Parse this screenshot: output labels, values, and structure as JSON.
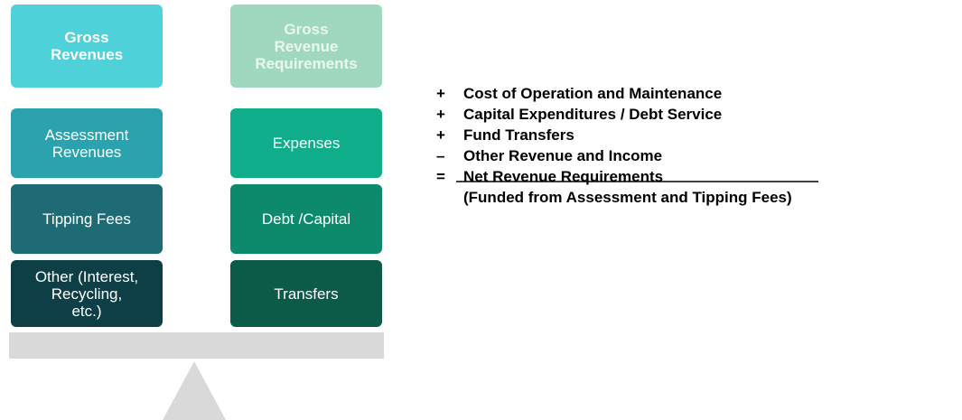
{
  "left_column": [
    {
      "lines": [
        "Gross",
        "Revenues"
      ]
    },
    {
      "lines": [
        "Assessment",
        "Revenues"
      ]
    },
    {
      "lines": [
        "Tipping Fees"
      ]
    },
    {
      "lines": [
        "Other (Interest,",
        "Recycling,",
        "etc.)"
      ]
    }
  ],
  "right_column": [
    {
      "lines": [
        "Gross",
        "Revenue",
        "Requirements"
      ]
    },
    {
      "lines": [
        "Expenses"
      ]
    },
    {
      "lines": [
        "Debt /Capital"
      ]
    },
    {
      "lines": [
        "Transfers"
      ]
    }
  ],
  "formula": [
    {
      "symbol": "+",
      "text": "Cost of Operation and Maintenance"
    },
    {
      "symbol": "+",
      "text": "Capital Expenditures / Debt Service"
    },
    {
      "symbol": "+",
      "text": "Fund Transfers"
    },
    {
      "symbol": "–",
      "text": "Other Revenue and Income"
    },
    {
      "symbol": "=",
      "text": "Net Revenue Requirements"
    },
    {
      "symbol": "",
      "text": "(Funded from Assessment and Tipping Fees)"
    }
  ]
}
